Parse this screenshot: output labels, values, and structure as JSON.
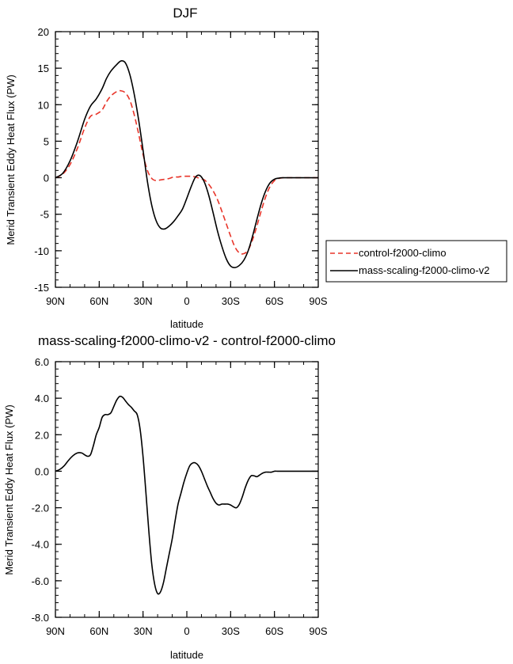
{
  "chart_data": [
    {
      "type": "line",
      "title": "DJF",
      "xlabel": "latitude",
      "ylabel": "Merid Transient Eddy Heat Flux (PW)",
      "xlim": [
        90,
        -90
      ],
      "ylim": [
        -15,
        20
      ],
      "x_ticks": [
        {
          "value": 90,
          "label": "90N"
        },
        {
          "value": 60,
          "label": "60N"
        },
        {
          "value": 30,
          "label": "30N"
        },
        {
          "value": 0,
          "label": "0"
        },
        {
          "value": -30,
          "label": "30S"
        },
        {
          "value": -60,
          "label": "60S"
        },
        {
          "value": -90,
          "label": "90S"
        }
      ],
      "y_ticks": [
        {
          "value": 20,
          "label": "20"
        },
        {
          "value": 15,
          "label": "15"
        },
        {
          "value": 10,
          "label": "10"
        },
        {
          "value": 5,
          "label": "5"
        },
        {
          "value": 0,
          "label": "0"
        },
        {
          "value": -5,
          "label": "-5"
        },
        {
          "value": -10,
          "label": "-10"
        },
        {
          "value": -15,
          "label": "-15"
        }
      ],
      "legend": {
        "placement": "right, outside plot"
      },
      "series": [
        {
          "name": "control-f2000-climo",
          "color": "#e8352a",
          "dash": "dashed",
          "x": [
            90,
            85,
            80,
            75,
            70,
            66,
            62,
            58,
            55,
            52,
            48,
            45,
            42,
            39,
            36,
            33,
            30,
            27,
            24,
            21,
            18,
            15,
            12,
            9,
            6,
            3,
            0,
            -3,
            -6,
            -9,
            -12,
            -15,
            -18,
            -21,
            -24,
            -27,
            -30,
            -33,
            -36,
            -39,
            -42,
            -45,
            -48,
            -51,
            -54,
            -57,
            -60,
            -63,
            -66,
            -70,
            -75,
            -80,
            -85,
            -90
          ],
          "y": [
            0,
            0.5,
            1.8,
            4.0,
            6.8,
            8.4,
            8.7,
            9.3,
            10.4,
            11.2,
            11.8,
            11.9,
            11.6,
            10.6,
            8.6,
            6.0,
            3.2,
            1.0,
            -0.1,
            -0.4,
            -0.3,
            -0.2,
            -0.1,
            0.1,
            0.1,
            0.2,
            0.2,
            0.2,
            0.1,
            -0.1,
            -0.3,
            -0.9,
            -1.8,
            -3.0,
            -4.6,
            -6.3,
            -8.0,
            -9.5,
            -10.3,
            -10.4,
            -9.9,
            -8.5,
            -6.6,
            -4.5,
            -2.6,
            -1.2,
            -0.4,
            -0.1,
            0,
            0,
            0,
            0,
            0,
            0
          ]
        },
        {
          "name": "mass-scaling-f2000-climo-v2",
          "color": "#000000",
          "dash": "solid",
          "x": [
            90,
            85,
            80,
            75,
            70,
            66,
            62,
            58,
            55,
            52,
            48,
            45,
            42,
            39,
            36,
            33,
            30,
            27,
            24,
            21,
            18,
            15,
            12,
            9,
            6,
            3,
            0,
            -3,
            -6,
            -9,
            -12,
            -15,
            -18,
            -21,
            -24,
            -27,
            -30,
            -33,
            -36,
            -39,
            -42,
            -45,
            -48,
            -51,
            -54,
            -57,
            -60,
            -63,
            -66,
            -70,
            -75,
            -80,
            -85,
            -90
          ],
          "y": [
            0,
            0.6,
            2.3,
            4.9,
            8.0,
            9.8,
            10.8,
            12.2,
            13.6,
            14.6,
            15.5,
            16.0,
            15.7,
            14.1,
            11.4,
            7.9,
            3.8,
            -0.5,
            -3.8,
            -5.9,
            -6.9,
            -7.0,
            -6.6,
            -6.0,
            -5.2,
            -4.3,
            -2.8,
            -1.2,
            0.1,
            0.3,
            -0.6,
            -2.4,
            -4.8,
            -7.3,
            -9.4,
            -11.1,
            -12.1,
            -12.3,
            -12.0,
            -11.3,
            -10.0,
            -8.0,
            -5.7,
            -3.5,
            -1.8,
            -0.7,
            -0.2,
            -0.05,
            0,
            0,
            0,
            0,
            0,
            0
          ]
        }
      ]
    },
    {
      "type": "line",
      "title": "mass-scaling-f2000-climo-v2 - control-f2000-climo",
      "xlabel": "latitude",
      "ylabel": "Merid Transient Eddy Heat Flux (PW)",
      "xlim": [
        90,
        -90
      ],
      "ylim": [
        -8,
        6
      ],
      "x_ticks": [
        {
          "value": 90,
          "label": "90N"
        },
        {
          "value": 60,
          "label": "60N"
        },
        {
          "value": 30,
          "label": "30N"
        },
        {
          "value": 0,
          "label": "0"
        },
        {
          "value": -30,
          "label": "30S"
        },
        {
          "value": -60,
          "label": "60S"
        },
        {
          "value": -90,
          "label": "90S"
        }
      ],
      "y_ticks": [
        {
          "value": 6,
          "label": "6.0"
        },
        {
          "value": 4,
          "label": "4.0"
        },
        {
          "value": 2,
          "label": "2.0"
        },
        {
          "value": 0,
          "label": "0.0"
        },
        {
          "value": -2,
          "label": "-2.0"
        },
        {
          "value": -4,
          "label": "-4.0"
        },
        {
          "value": -6,
          "label": "-6.0"
        },
        {
          "value": -8,
          "label": "-8.0"
        }
      ],
      "series": [
        {
          "color": "#000000",
          "dash": "solid",
          "x": [
            90,
            87,
            84,
            81,
            78,
            75,
            72,
            70,
            68,
            66,
            64,
            62,
            60,
            58,
            56,
            54,
            52,
            50,
            48,
            46,
            44,
            42,
            40,
            38,
            36,
            34,
            32,
            30,
            28,
            26,
            24,
            22,
            20,
            18,
            16,
            14,
            12,
            10,
            8,
            6,
            4,
            2,
            0,
            -2,
            -4,
            -6,
            -8,
            -10,
            -12,
            -14,
            -16,
            -18,
            -20,
            -22,
            -24,
            -26,
            -28,
            -30,
            -32,
            -34,
            -36,
            -38,
            -40,
            -42,
            -44,
            -46,
            -48,
            -50,
            -52,
            -54,
            -56,
            -58,
            -60,
            -62,
            -64,
            -66,
            -68,
            -70,
            -72,
            -75,
            -78,
            -81,
            -84,
            -87,
            -90
          ],
          "y": [
            0,
            0.1,
            0.3,
            0.6,
            0.85,
            1.0,
            1.0,
            0.9,
            0.82,
            0.9,
            1.4,
            2.0,
            2.4,
            2.95,
            3.1,
            3.1,
            3.2,
            3.55,
            3.9,
            4.1,
            4.05,
            3.85,
            3.65,
            3.5,
            3.3,
            3.1,
            2.3,
            0.8,
            -1.2,
            -3.3,
            -5.1,
            -6.2,
            -6.7,
            -6.6,
            -6.1,
            -5.3,
            -4.5,
            -3.7,
            -2.7,
            -1.8,
            -1.2,
            -0.6,
            -0.1,
            0.3,
            0.45,
            0.45,
            0.3,
            0.0,
            -0.4,
            -0.8,
            -1.15,
            -1.5,
            -1.75,
            -1.85,
            -1.8,
            -1.8,
            -1.8,
            -1.85,
            -1.95,
            -2.0,
            -1.8,
            -1.4,
            -0.9,
            -0.5,
            -0.25,
            -0.25,
            -0.3,
            -0.2,
            -0.1,
            -0.05,
            -0.05,
            -0.05,
            0.0,
            0.0,
            0.0,
            0.0,
            0.0,
            0.0,
            0.0,
            0.0,
            0.0,
            0.0,
            0.0,
            0.0,
            0.0
          ]
        }
      ]
    }
  ]
}
